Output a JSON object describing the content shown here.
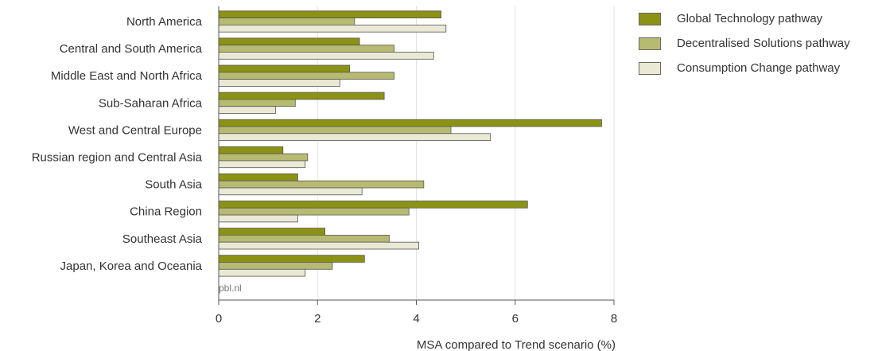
{
  "chart_data": {
    "type": "bar",
    "orientation": "horizontal",
    "categories": [
      "North America",
      "Central and South America",
      "Middle East and North Africa",
      "Sub-Saharan Africa",
      "West and Central Europe",
      "Russian region and Central Asia",
      "South Asia",
      "China Region",
      "Southeast Asia",
      "Japan, Korea and Oceania"
    ],
    "series": [
      {
        "name": "Global Technology pathway",
        "color": "#8c9314",
        "values": [
          4.5,
          2.85,
          2.65,
          3.35,
          7.75,
          1.3,
          1.6,
          6.25,
          2.15,
          2.95
        ]
      },
      {
        "name": "Decentralised Solutions pathway",
        "color": "#b7bb72",
        "values": [
          2.75,
          3.55,
          3.55,
          1.55,
          4.7,
          1.8,
          4.15,
          3.85,
          3.45,
          2.3
        ]
      },
      {
        "name": "Consumption Change pathway",
        "color": "#e9e9d5",
        "values": [
          4.6,
          4.35,
          2.45,
          1.15,
          5.5,
          1.75,
          2.9,
          1.6,
          4.05,
          1.75
        ]
      }
    ],
    "xlabel": "MSA compared to Trend scenario (%)",
    "xlim": [
      0,
      8
    ],
    "xticks": [
      "0",
      "2",
      "4",
      "6",
      "8"
    ],
    "grid": true,
    "legend_position": "top-right",
    "source_note": "pbl.nl"
  }
}
